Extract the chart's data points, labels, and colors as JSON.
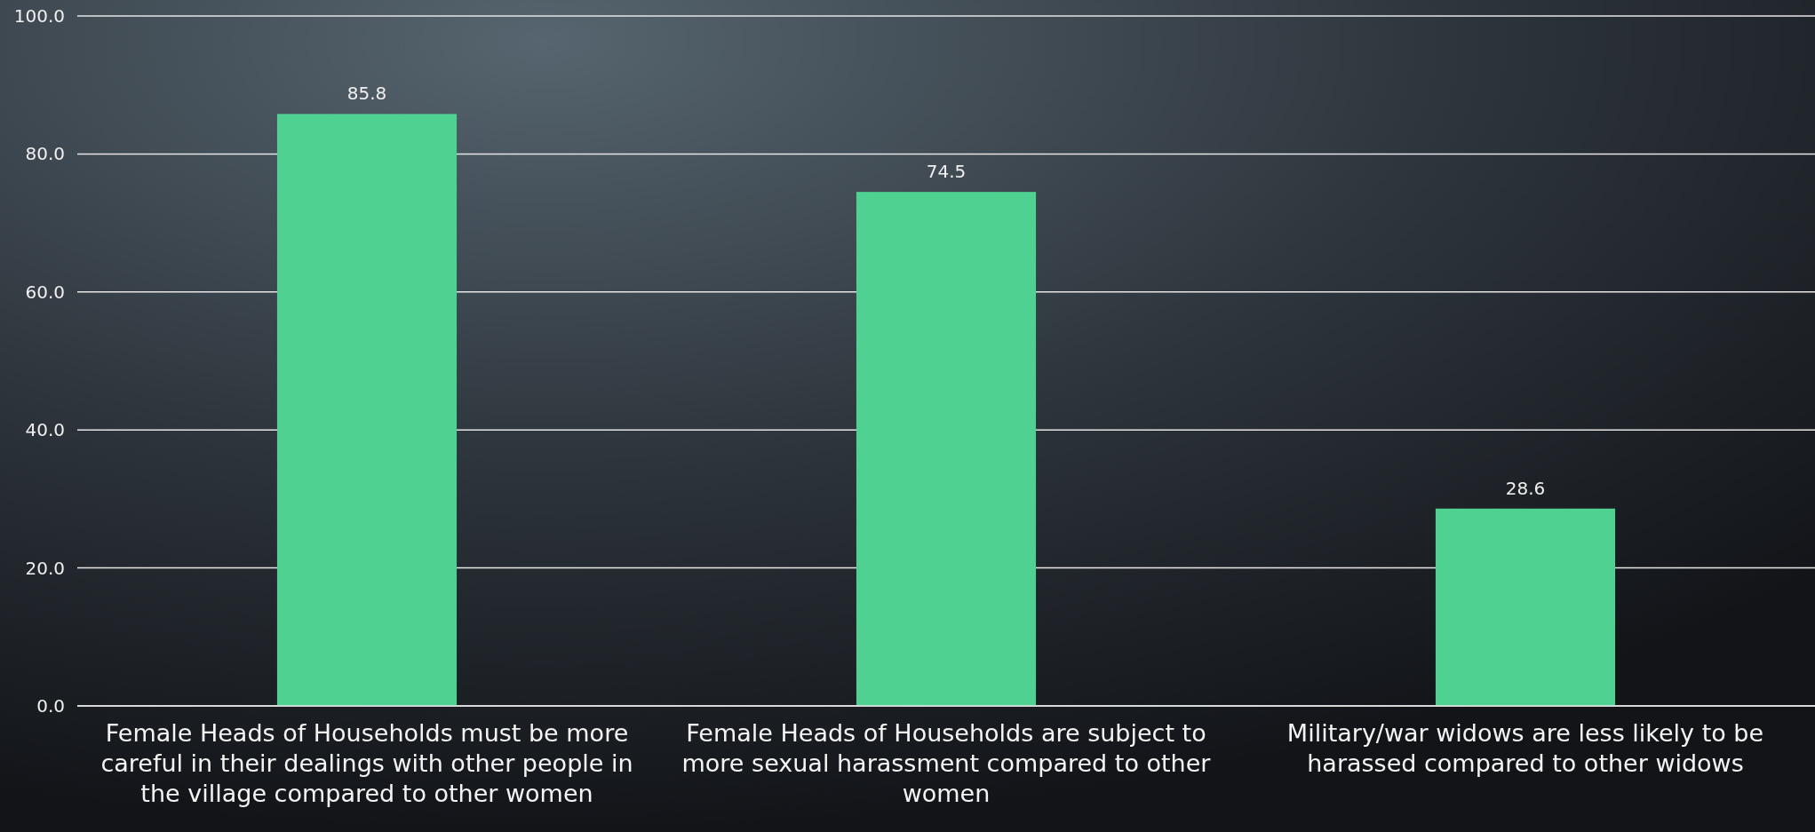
{
  "chart_data": {
    "type": "bar",
    "categories": [
      "Female Heads of Households must be more careful in their dealings with other people in the village compared to other women",
      "Female Heads of Households are subject to more sexual harassment compared to other women",
      "Military/war widows are less likely to be harassed compared to other widows"
    ],
    "values": [
      85.8,
      74.5,
      28.6
    ],
    "color": "#4fd192",
    "ylim": [
      0,
      100
    ],
    "yticks": [
      {
        "value": 0,
        "label": "0.0"
      },
      {
        "value": 20,
        "label": "20.0"
      },
      {
        "value": 40,
        "label": "40.0"
      },
      {
        "value": 60,
        "label": "60.0"
      },
      {
        "value": 80,
        "label": "80.0"
      },
      {
        "value": 100,
        "label": "100.0"
      }
    ],
    "grid": "y",
    "data_labels": true
  }
}
